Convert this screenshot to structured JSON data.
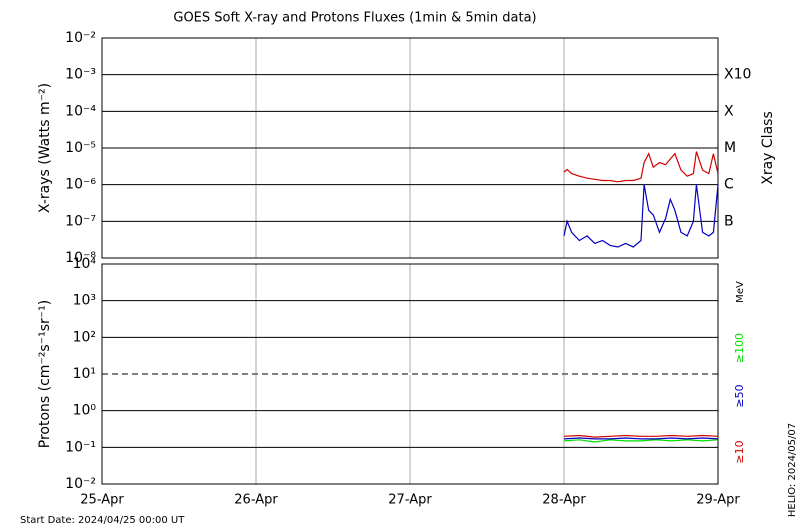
{
  "title": "GOES Soft X-ray and Protons Fluxes   (1min & 5min data)",
  "footer": "Start Date: 2024/04/25 00:00 UT",
  "side_note": "HELIO: 2024/05/07",
  "chart_data": [
    {
      "type": "line",
      "y_label": "X-rays (Watts m⁻²)",
      "log_y": true,
      "ylim": [
        1e-08,
        0.01
      ],
      "yticks": [
        {
          "value": 1e-08,
          "label": "10⁻⁸"
        },
        {
          "value": 1e-07,
          "label": "10⁻⁷"
        },
        {
          "value": 1e-06,
          "label": "10⁻⁶"
        },
        {
          "value": 1e-05,
          "label": "10⁻⁵"
        },
        {
          "value": 0.0001,
          "label": "10⁻⁴"
        },
        {
          "value": 0.001,
          "label": "10⁻³"
        },
        {
          "value": 0.01,
          "label": "10⁻²"
        }
      ],
      "xlim": [
        0,
        4
      ],
      "xticks": [
        0,
        1,
        2,
        3,
        4
      ],
      "class_axis_label": "Xray Class",
      "class_labels": [
        {
          "value": 0.001,
          "label": "X10"
        },
        {
          "value": 0.0001,
          "label": "X"
        },
        {
          "value": 1e-05,
          "label": "M"
        },
        {
          "value": 1e-06,
          "label": "C"
        },
        {
          "value": 1e-07,
          "label": "B"
        }
      ],
      "x": [
        3.0,
        3.02,
        3.05,
        3.1,
        3.15,
        3.2,
        3.25,
        3.3,
        3.35,
        3.4,
        3.45,
        3.5,
        3.52,
        3.55,
        3.58,
        3.62,
        3.66,
        3.69,
        3.72,
        3.76,
        3.8,
        3.84,
        3.86,
        3.9,
        3.94,
        3.97,
        4.0
      ],
      "series": [
        {
          "name": "long",
          "color": "#d00000",
          "values": [
            2.2e-06,
            2.6e-06,
            2e-06,
            1.7e-06,
            1.5e-06,
            1.4e-06,
            1.3e-06,
            1.3e-06,
            1.2e-06,
            1.3e-06,
            1.3e-06,
            1.5e-06,
            4e-06,
            7e-06,
            3e-06,
            4e-06,
            3.5e-06,
            5e-06,
            7e-06,
            2.5e-06,
            1.7e-06,
            2e-06,
            8e-06,
            2.5e-06,
            2e-06,
            7e-06,
            2e-06
          ]
        },
        {
          "name": "short",
          "color": "#0000c0",
          "values": [
            4e-08,
            1e-07,
            5e-08,
            3e-08,
            4e-08,
            2.5e-08,
            3e-08,
            2.2e-08,
            2e-08,
            2.5e-08,
            2e-08,
            3e-08,
            1e-06,
            2e-07,
            1.5e-07,
            5e-08,
            1.2e-07,
            4e-07,
            2e-07,
            5e-08,
            4e-08,
            1e-07,
            1e-06,
            5e-08,
            4e-08,
            5e-08,
            1e-06
          ]
        }
      ]
    },
    {
      "type": "line",
      "y_label": "Protons (cm⁻²s⁻¹sr⁻¹)",
      "log_y": true,
      "ylim": [
        0.01,
        10000
      ],
      "yticks": [
        {
          "value": 0.01,
          "label": "10⁻²"
        },
        {
          "value": 0.1,
          "label": "10⁻¹"
        },
        {
          "value": 1,
          "label": "10⁰"
        },
        {
          "value": 10,
          "label": "10¹"
        },
        {
          "value": 100,
          "label": "10²"
        },
        {
          "value": 1000,
          "label": "10³"
        },
        {
          "value": 10000,
          "label": "10⁴"
        }
      ],
      "dashed_gridline": 10,
      "xlim": [
        0,
        4
      ],
      "xticks": [
        {
          "value": 0,
          "label": "25-Apr"
        },
        {
          "value": 1,
          "label": "26-Apr"
        },
        {
          "value": 2,
          "label": "27-Apr"
        },
        {
          "value": 3,
          "label": "28-Apr"
        },
        {
          "value": 4,
          "label": "29-Apr"
        }
      ],
      "units": "MeV",
      "x": [
        3.0,
        3.1,
        3.2,
        3.3,
        3.4,
        3.5,
        3.6,
        3.7,
        3.8,
        3.9,
        4.0
      ],
      "series": [
        {
          "name": "≥100",
          "color": "#00e000",
          "values": [
            0.15,
            0.16,
            0.14,
            0.16,
            0.15,
            0.15,
            0.16,
            0.15,
            0.16,
            0.15,
            0.16
          ]
        },
        {
          "name": "≥50",
          "color": "#0000c0",
          "values": [
            0.17,
            0.18,
            0.17,
            0.17,
            0.18,
            0.17,
            0.17,
            0.18,
            0.17,
            0.18,
            0.17
          ]
        },
        {
          "name": "≥10",
          "color": "#d00000",
          "values": [
            0.2,
            0.21,
            0.19,
            0.2,
            0.21,
            0.2,
            0.2,
            0.21,
            0.2,
            0.21,
            0.2
          ]
        }
      ]
    }
  ]
}
